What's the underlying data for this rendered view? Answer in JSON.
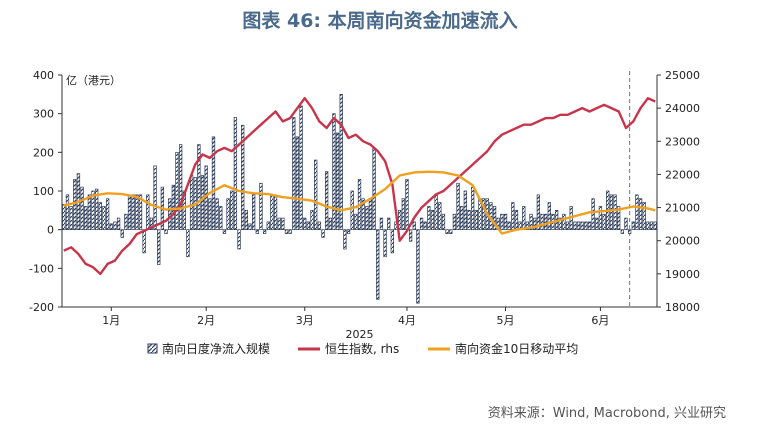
{
  "title": "图表 46: 本周南向资金加速流入",
  "source": "资料来源：Wind, Macrobond, 兴业研究",
  "colors": {
    "bars": "#2f3e5c",
    "line_hsi": "#c8354b",
    "line_ma": "#f0a020",
    "axis": "#333333",
    "vline": "#777777"
  },
  "chart_data": {
    "type": "bar",
    "title": "图表 46: 本周南向资金加速流入",
    "xlabel": "2025",
    "y_unit_label": "亿（港元）",
    "ylim": [
      -200,
      400
    ],
    "y2lim": [
      18000,
      25000
    ],
    "yticks": [
      -200,
      -100,
      0,
      100,
      200,
      300,
      400
    ],
    "y2ticks": [
      18000,
      19000,
      20000,
      21000,
      22000,
      23000,
      24000,
      25000
    ],
    "x_range": [
      1,
      163
    ],
    "month_ticks": [
      {
        "label": "1月",
        "x": 14
      },
      {
        "label": "2月",
        "x": 40
      },
      {
        "label": "3月",
        "x": 67
      },
      {
        "label": "4月",
        "x": 95
      },
      {
        "label": "5月",
        "x": 122
      },
      {
        "label": "6月",
        "x": 148
      }
    ],
    "vline_x": 156,
    "legend": [
      {
        "name": "南向日度净流入规模",
        "kind": "bar"
      },
      {
        "name": "恒生指数, rhs",
        "kind": "line"
      },
      {
        "name": "南向资金10日移动平均",
        "kind": "line"
      }
    ],
    "series": [
      {
        "name": "南向日度净流入规模",
        "axis": "left",
        "render": "bar",
        "points": [
          [
            1,
            65
          ],
          [
            2,
            90
          ],
          [
            3,
            60
          ],
          [
            4,
            130
          ],
          [
            5,
            145
          ],
          [
            6,
            110
          ],
          [
            7,
            60
          ],
          [
            8,
            90
          ],
          [
            9,
            100
          ],
          [
            10,
            105
          ],
          [
            11,
            70
          ],
          [
            12,
            60
          ],
          [
            13,
            80
          ],
          [
            14,
            15
          ],
          [
            15,
            20
          ],
          [
            16,
            30
          ],
          [
            17,
            -20
          ],
          [
            18,
            40
          ],
          [
            19,
            90
          ],
          [
            20,
            90
          ],
          [
            21,
            90
          ],
          [
            22,
            90
          ],
          [
            23,
            -60
          ],
          [
            24,
            90
          ],
          [
            25,
            30
          ],
          [
            26,
            165
          ],
          [
            27,
            -90
          ],
          [
            28,
            110
          ],
          [
            29,
            -10
          ],
          [
            30,
            80
          ],
          [
            31,
            115
          ],
          [
            32,
            200
          ],
          [
            33,
            220
          ],
          [
            34,
            100
          ],
          [
            35,
            -70
          ],
          [
            36,
            140
          ],
          [
            37,
            135
          ],
          [
            38,
            220
          ],
          [
            39,
            140
          ],
          [
            40,
            165
          ],
          [
            41,
            80
          ],
          [
            42,
            240
          ],
          [
            43,
            80
          ],
          [
            44,
            60
          ],
          [
            45,
            -10
          ],
          [
            46,
            80
          ],
          [
            47,
            100
          ],
          [
            48,
            290
          ],
          [
            49,
            -50
          ],
          [
            50,
            270
          ],
          [
            51,
            50
          ],
          [
            52,
            15
          ],
          [
            53,
            90
          ],
          [
            54,
            -10
          ],
          [
            55,
            120
          ],
          [
            56,
            -10
          ],
          [
            57,
            20
          ],
          [
            58,
            90
          ],
          [
            59,
            90
          ],
          [
            60,
            30
          ],
          [
            61,
            30
          ],
          [
            62,
            -10
          ],
          [
            63,
            -10
          ],
          [
            64,
            290
          ],
          [
            65,
            240
          ],
          [
            66,
            320
          ],
          [
            67,
            30
          ],
          [
            68,
            20
          ],
          [
            69,
            50
          ],
          [
            70,
            180
          ],
          [
            71,
            20
          ],
          [
            72,
            -20
          ],
          [
            73,
            150
          ],
          [
            74,
            30
          ],
          [
            75,
            300
          ],
          [
            76,
            250
          ],
          [
            77,
            350
          ],
          [
            78,
            -50
          ],
          [
            79,
            -10
          ],
          [
            80,
            100
          ],
          [
            81,
            40
          ],
          [
            82,
            130
          ],
          [
            83,
            80
          ],
          [
            84,
            60
          ],
          [
            85,
            80
          ],
          [
            86,
            210
          ],
          [
            87,
            -180
          ],
          [
            88,
            30
          ],
          [
            89,
            -70
          ],
          [
            90,
            30
          ],
          [
            91,
            -60
          ],
          [
            92,
            20
          ],
          [
            93,
            50
          ],
          [
            94,
            80
          ],
          [
            95,
            130
          ],
          [
            96,
            -30
          ],
          [
            97,
            20
          ],
          [
            98,
            -190
          ],
          [
            99,
            30
          ],
          [
            100,
            20
          ],
          [
            101,
            60
          ],
          [
            102,
            50
          ],
          [
            103,
            90
          ],
          [
            104,
            70
          ],
          [
            105,
            40
          ],
          [
            106,
            -10
          ],
          [
            107,
            -10
          ],
          [
            108,
            40
          ],
          [
            109,
            120
          ],
          [
            110,
            60
          ],
          [
            111,
            100
          ],
          [
            112,
            50
          ],
          [
            113,
            110
          ],
          [
            114,
            50
          ],
          [
            115,
            80
          ],
          [
            116,
            80
          ],
          [
            117,
            80
          ],
          [
            118,
            70
          ],
          [
            119,
            60
          ],
          [
            120,
            30
          ],
          [
            121,
            40
          ],
          [
            122,
            40
          ],
          [
            123,
            20
          ],
          [
            124,
            70
          ],
          [
            125,
            50
          ],
          [
            126,
            20
          ],
          [
            127,
            60
          ],
          [
            128,
            20
          ],
          [
            129,
            40
          ],
          [
            130,
            30
          ],
          [
            131,
            90
          ],
          [
            132,
            40
          ],
          [
            133,
            40
          ],
          [
            134,
            70
          ],
          [
            135,
            40
          ],
          [
            136,
            50
          ],
          [
            137,
            30
          ],
          [
            138,
            40
          ],
          [
            139,
            20
          ],
          [
            140,
            60
          ],
          [
            141,
            20
          ],
          [
            142,
            20
          ],
          [
            143,
            20
          ],
          [
            144,
            20
          ],
          [
            145,
            20
          ],
          [
            146,
            80
          ],
          [
            147,
            30
          ],
          [
            148,
            60
          ],
          [
            149,
            40
          ],
          [
            150,
            100
          ],
          [
            151,
            90
          ],
          [
            152,
            90
          ],
          [
            153,
            60
          ],
          [
            154,
            -10
          ],
          [
            155,
            30
          ],
          [
            156,
            -10
          ],
          [
            157,
            20
          ],
          [
            158,
            90
          ],
          [
            159,
            80
          ],
          [
            160,
            70
          ],
          [
            161,
            20
          ],
          [
            162,
            20
          ],
          [
            163,
            20
          ]
        ]
      },
      {
        "name": "恒生指数, rhs",
        "axis": "right",
        "render": "line",
        "points": [
          [
            1,
            19700
          ],
          [
            3,
            19800
          ],
          [
            5,
            19600
          ],
          [
            7,
            19300
          ],
          [
            9,
            19200
          ],
          [
            11,
            19000
          ],
          [
            13,
            19300
          ],
          [
            15,
            19400
          ],
          [
            17,
            19700
          ],
          [
            19,
            19900
          ],
          [
            21,
            20200
          ],
          [
            23,
            20300
          ],
          [
            25,
            20400
          ],
          [
            27,
            20500
          ],
          [
            29,
            20600
          ],
          [
            31,
            20800
          ],
          [
            33,
            21100
          ],
          [
            35,
            21700
          ],
          [
            37,
            22300
          ],
          [
            39,
            22600
          ],
          [
            41,
            22500
          ],
          [
            43,
            22700
          ],
          [
            45,
            22800
          ],
          [
            47,
            22700
          ],
          [
            49,
            22900
          ],
          [
            51,
            23100
          ],
          [
            53,
            23300
          ],
          [
            55,
            23500
          ],
          [
            57,
            23700
          ],
          [
            59,
            23900
          ],
          [
            61,
            23600
          ],
          [
            63,
            23700
          ],
          [
            65,
            24000
          ],
          [
            67,
            24300
          ],
          [
            69,
            24000
          ],
          [
            71,
            23600
          ],
          [
            73,
            23400
          ],
          [
            75,
            23700
          ],
          [
            77,
            23500
          ],
          [
            79,
            23100
          ],
          [
            81,
            23200
          ],
          [
            83,
            23000
          ],
          [
            85,
            22900
          ],
          [
            87,
            22700
          ],
          [
            89,
            22400
          ],
          [
            91,
            21700
          ],
          [
            93,
            20000
          ],
          [
            95,
            20300
          ],
          [
            97,
            20700
          ],
          [
            99,
            21000
          ],
          [
            101,
            21200
          ],
          [
            103,
            21400
          ],
          [
            105,
            21500
          ],
          [
            107,
            21700
          ],
          [
            109,
            21900
          ],
          [
            111,
            22100
          ],
          [
            113,
            22300
          ],
          [
            115,
            22500
          ],
          [
            117,
            22700
          ],
          [
            119,
            23000
          ],
          [
            121,
            23200
          ],
          [
            123,
            23300
          ],
          [
            125,
            23400
          ],
          [
            127,
            23500
          ],
          [
            129,
            23500
          ],
          [
            131,
            23600
          ],
          [
            133,
            23700
          ],
          [
            135,
            23700
          ],
          [
            137,
            23800
          ],
          [
            139,
            23800
          ],
          [
            141,
            23900
          ],
          [
            143,
            24000
          ],
          [
            145,
            23900
          ],
          [
            147,
            24000
          ],
          [
            149,
            24100
          ],
          [
            151,
            24000
          ],
          [
            153,
            23900
          ],
          [
            155,
            23400
          ],
          [
            157,
            23600
          ],
          [
            159,
            24000
          ],
          [
            161,
            24300
          ],
          [
            163,
            24200
          ]
        ]
      },
      {
        "name": "南向资金10日移动平均",
        "axis": "left",
        "render": "line",
        "points": [
          [
            1,
            62
          ],
          [
            5,
            72
          ],
          [
            9,
            88
          ],
          [
            13,
            94
          ],
          [
            17,
            92
          ],
          [
            21,
            85
          ],
          [
            25,
            64
          ],
          [
            29,
            52
          ],
          [
            33,
            55
          ],
          [
            37,
            65
          ],
          [
            41,
            95
          ],
          [
            45,
            115
          ],
          [
            49,
            100
          ],
          [
            53,
            94
          ],
          [
            57,
            92
          ],
          [
            61,
            84
          ],
          [
            65,
            80
          ],
          [
            69,
            75
          ],
          [
            73,
            60
          ],
          [
            77,
            50
          ],
          [
            81,
            58
          ],
          [
            85,
            80
          ],
          [
            89,
            105
          ],
          [
            93,
            140
          ],
          [
            97,
            148
          ],
          [
            101,
            150
          ],
          [
            105,
            148
          ],
          [
            109,
            140
          ],
          [
            113,
            115
          ],
          [
            117,
            40
          ],
          [
            121,
            -10
          ],
          [
            125,
            0
          ],
          [
            129,
            5
          ],
          [
            133,
            15
          ],
          [
            137,
            25
          ],
          [
            141,
            35
          ],
          [
            145,
            45
          ],
          [
            149,
            48
          ],
          [
            153,
            52
          ],
          [
            157,
            60
          ],
          [
            161,
            55
          ],
          [
            163,
            50
          ]
        ]
      }
    ]
  }
}
